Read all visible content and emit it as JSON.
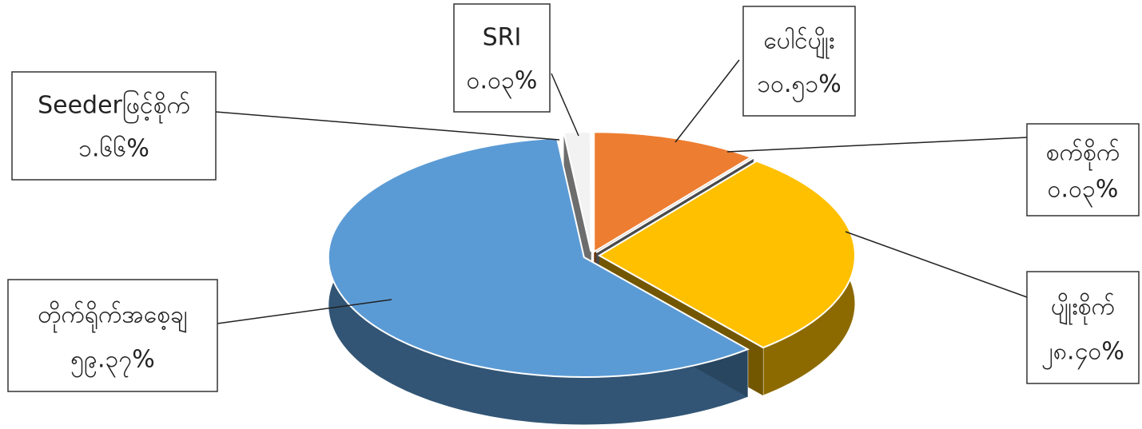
{
  "chart_data": {
    "type": "pie",
    "categories": [
      "ပေါင်ပျိုး",
      "စက်စိုက်",
      "ပျိုးစိုက်",
      "တိုက်ရိုက်အစေ့ချ",
      "Seederဖြင့်စိုက်",
      "SRI"
    ],
    "values": [
      10.51,
      0.03,
      28.4,
      59.37,
      1.66,
      0.03
    ],
    "value_labels": [
      "၁၀.၅၁%",
      "၀.၀၃%",
      "၂၈.၄၀%",
      "၅၉.၃၇%",
      "၁.၆၆%",
      "၀.၀၃%"
    ],
    "colors": [
      "#ed7d31",
      "#a5a5a5",
      "#ffc000",
      "#5b9bd5",
      "#f2f2f2",
      "#70ad47"
    ]
  }
}
